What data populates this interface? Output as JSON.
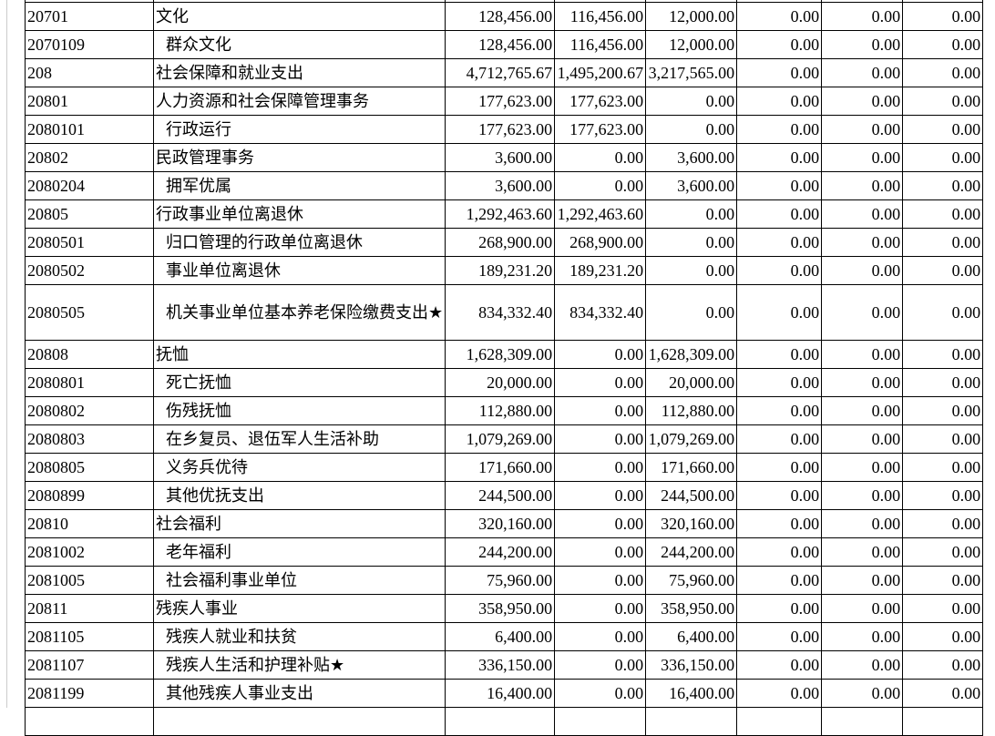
{
  "page": {
    "background_color": "#ffffff",
    "border_color": "#000000",
    "text_color": "#000000",
    "page_edge_color": "#cccccc"
  },
  "table": {
    "rows": [
      {
        "code": "20701",
        "name": "文化",
        "indent": false,
        "tall": false,
        "values": [
          "128,456.00",
          "116,456.00",
          "12,000.00",
          "0.00",
          "0.00",
          "0.00"
        ]
      },
      {
        "code": "2070109",
        "name": "群众文化",
        "indent": true,
        "tall": false,
        "values": [
          "128,456.00",
          "116,456.00",
          "12,000.00",
          "0.00",
          "0.00",
          "0.00"
        ]
      },
      {
        "code": "208",
        "name": "社会保障和就业支出",
        "indent": false,
        "tall": false,
        "values": [
          "4,712,765.67",
          "1,495,200.67",
          "3,217,565.00",
          "0.00",
          "0.00",
          "0.00"
        ]
      },
      {
        "code": "20801",
        "name": "人力资源和社会保障管理事务",
        "indent": false,
        "tall": false,
        "values": [
          "177,623.00",
          "177,623.00",
          "0.00",
          "0.00",
          "0.00",
          "0.00"
        ]
      },
      {
        "code": "2080101",
        "name": "行政运行",
        "indent": true,
        "tall": false,
        "values": [
          "177,623.00",
          "177,623.00",
          "0.00",
          "0.00",
          "0.00",
          "0.00"
        ]
      },
      {
        "code": "20802",
        "name": "民政管理事务",
        "indent": false,
        "tall": false,
        "values": [
          "3,600.00",
          "0.00",
          "3,600.00",
          "0.00",
          "0.00",
          "0.00"
        ]
      },
      {
        "code": "2080204",
        "name": "拥军优属",
        "indent": true,
        "tall": false,
        "values": [
          "3,600.00",
          "0.00",
          "3,600.00",
          "0.00",
          "0.00",
          "0.00"
        ]
      },
      {
        "code": "20805",
        "name": "行政事业单位离退休",
        "indent": false,
        "tall": false,
        "values": [
          "1,292,463.60",
          "1,292,463.60",
          "0.00",
          "0.00",
          "0.00",
          "0.00"
        ]
      },
      {
        "code": "2080501",
        "name": "归口管理的行政单位离退休",
        "indent": true,
        "tall": false,
        "values": [
          "268,900.00",
          "268,900.00",
          "0.00",
          "0.00",
          "0.00",
          "0.00"
        ]
      },
      {
        "code": "2080502",
        "name": "事业单位离退休",
        "indent": true,
        "tall": false,
        "values": [
          "189,231.20",
          "189,231.20",
          "0.00",
          "0.00",
          "0.00",
          "0.00"
        ]
      },
      {
        "code": "2080505",
        "name": "机关事业单位基本养老保险缴费支出★",
        "indent": true,
        "tall": true,
        "values": [
          "834,332.40",
          "834,332.40",
          "0.00",
          "0.00",
          "0.00",
          "0.00"
        ]
      },
      {
        "code": "20808",
        "name": "抚恤",
        "indent": false,
        "tall": false,
        "values": [
          "1,628,309.00",
          "0.00",
          "1,628,309.00",
          "0.00",
          "0.00",
          "0.00"
        ]
      },
      {
        "code": "2080801",
        "name": "死亡抚恤",
        "indent": true,
        "tall": false,
        "values": [
          "20,000.00",
          "0.00",
          "20,000.00",
          "0.00",
          "0.00",
          "0.00"
        ]
      },
      {
        "code": "2080802",
        "name": "伤残抚恤",
        "indent": true,
        "tall": false,
        "values": [
          "112,880.00",
          "0.00",
          "112,880.00",
          "0.00",
          "0.00",
          "0.00"
        ]
      },
      {
        "code": "2080803",
        "name": "在乡复员、退伍军人生活补助",
        "indent": true,
        "tall": false,
        "values": [
          "1,079,269.00",
          "0.00",
          "1,079,269.00",
          "0.00",
          "0.00",
          "0.00"
        ]
      },
      {
        "code": "2080805",
        "name": "义务兵优待",
        "indent": true,
        "tall": false,
        "values": [
          "171,660.00",
          "0.00",
          "171,660.00",
          "0.00",
          "0.00",
          "0.00"
        ]
      },
      {
        "code": "2080899",
        "name": "其他优抚支出",
        "indent": true,
        "tall": false,
        "values": [
          "244,500.00",
          "0.00",
          "244,500.00",
          "0.00",
          "0.00",
          "0.00"
        ]
      },
      {
        "code": "20810",
        "name": "社会福利",
        "indent": false,
        "tall": false,
        "values": [
          "320,160.00",
          "0.00",
          "320,160.00",
          "0.00",
          "0.00",
          "0.00"
        ]
      },
      {
        "code": "2081002",
        "name": "老年福利",
        "indent": true,
        "tall": false,
        "values": [
          "244,200.00",
          "0.00",
          "244,200.00",
          "0.00",
          "0.00",
          "0.00"
        ]
      },
      {
        "code": "2081005",
        "name": "社会福利事业单位",
        "indent": true,
        "tall": false,
        "values": [
          "75,960.00",
          "0.00",
          "75,960.00",
          "0.00",
          "0.00",
          "0.00"
        ]
      },
      {
        "code": "20811",
        "name": "残疾人事业",
        "indent": false,
        "tall": false,
        "values": [
          "358,950.00",
          "0.00",
          "358,950.00",
          "0.00",
          "0.00",
          "0.00"
        ]
      },
      {
        "code": "2081105",
        "name": "残疾人就业和扶贫",
        "indent": true,
        "tall": false,
        "values": [
          "6,400.00",
          "0.00",
          "6,400.00",
          "0.00",
          "0.00",
          "0.00"
        ]
      },
      {
        "code": "2081107",
        "name": "残疾人生活和护理补贴★",
        "indent": true,
        "tall": false,
        "values": [
          "336,150.00",
          "0.00",
          "336,150.00",
          "0.00",
          "0.00",
          "0.00"
        ]
      },
      {
        "code": "2081199",
        "name": "其他残疾人事业支出",
        "indent": true,
        "tall": false,
        "values": [
          "16,400.00",
          "0.00",
          "16,400.00",
          "0.00",
          "0.00",
          "0.00"
        ]
      }
    ]
  }
}
